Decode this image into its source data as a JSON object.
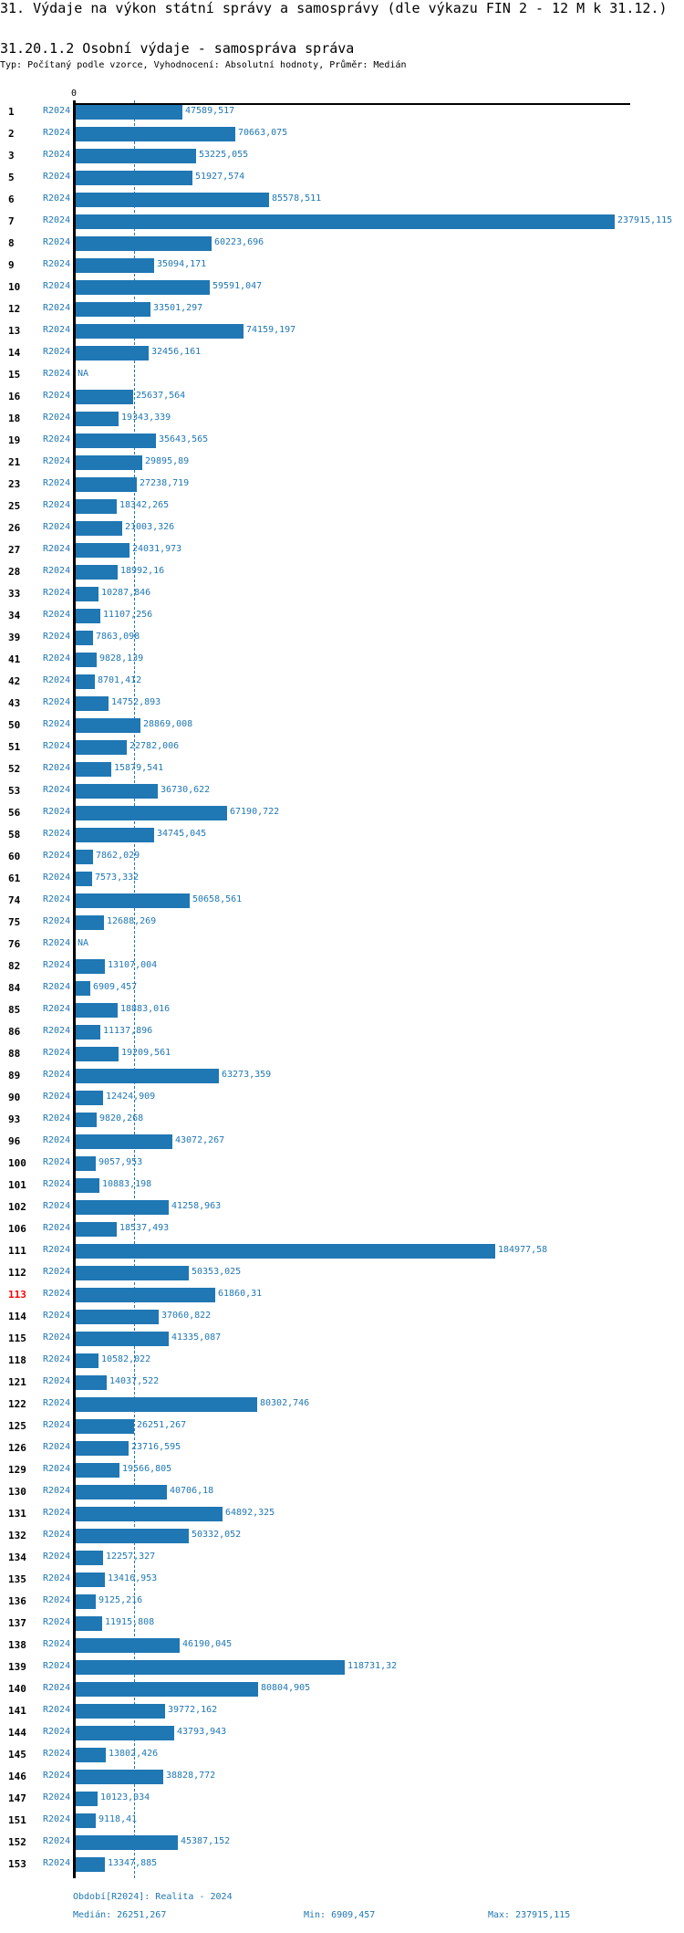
{
  "header": {
    "title": "31. Výdaje na výkon státní správy a samosprávy (dle výkazu FIN 2 - 12 M k 31.12.)",
    "subtitle": "31.20.1.2 Osobní výdaje - samospráva správa",
    "typ": "Typ: Počítaný podle vzorce, Vyhodnocení: Absolutní hodnoty, Průměr: Medián"
  },
  "colors": {
    "bar": "#1f77b4",
    "highlight": "#ff0000"
  },
  "chart_data": {
    "type": "bar",
    "orientation": "horizontal",
    "x_tick_zero": "0",
    "series_name": "R2024",
    "highlight_category": "113",
    "median_line": 26251.267,
    "rows": [
      {
        "id": "1",
        "period": "R2024",
        "value": 47589.517,
        "label": "47589,517"
      },
      {
        "id": "2",
        "period": "R2024",
        "value": 70663.075,
        "label": "70663,075"
      },
      {
        "id": "3",
        "period": "R2024",
        "value": 53225.055,
        "label": "53225,055"
      },
      {
        "id": "5",
        "period": "R2024",
        "value": 51927.574,
        "label": "51927,574"
      },
      {
        "id": "6",
        "period": "R2024",
        "value": 85578.511,
        "label": "85578,511"
      },
      {
        "id": "7",
        "period": "R2024",
        "value": 237915.115,
        "label": "237915,115"
      },
      {
        "id": "8",
        "period": "R2024",
        "value": 60223.696,
        "label": "60223,696"
      },
      {
        "id": "9",
        "period": "R2024",
        "value": 35094.171,
        "label": "35094,171"
      },
      {
        "id": "10",
        "period": "R2024",
        "value": 59591.047,
        "label": "59591,047"
      },
      {
        "id": "12",
        "period": "R2024",
        "value": 33501.297,
        "label": "33501,297"
      },
      {
        "id": "13",
        "period": "R2024",
        "value": 74159.197,
        "label": "74159,197"
      },
      {
        "id": "14",
        "period": "R2024",
        "value": 32456.161,
        "label": "32456,161"
      },
      {
        "id": "15",
        "period": "R2024",
        "value": null,
        "label": "NA"
      },
      {
        "id": "16",
        "period": "R2024",
        "value": 25637.564,
        "label": "25637,564"
      },
      {
        "id": "18",
        "period": "R2024",
        "value": 19343.339,
        "label": "19343,339"
      },
      {
        "id": "19",
        "period": "R2024",
        "value": 35643.565,
        "label": "35643,565"
      },
      {
        "id": "21",
        "period": "R2024",
        "value": 29895.89,
        "label": "29895,89"
      },
      {
        "id": "23",
        "period": "R2024",
        "value": 27238.719,
        "label": "27238,719"
      },
      {
        "id": "25",
        "period": "R2024",
        "value": 18342.265,
        "label": "18342,265"
      },
      {
        "id": "26",
        "period": "R2024",
        "value": 21003.326,
        "label": "21003,326"
      },
      {
        "id": "27",
        "period": "R2024",
        "value": 24031.973,
        "label": "24031,973"
      },
      {
        "id": "28",
        "period": "R2024",
        "value": 18992.16,
        "label": "18992,16"
      },
      {
        "id": "33",
        "period": "R2024",
        "value": 10287.846,
        "label": "10287,846"
      },
      {
        "id": "34",
        "period": "R2024",
        "value": 11107.256,
        "label": "11107,256"
      },
      {
        "id": "39",
        "period": "R2024",
        "value": 7863.098,
        "label": "7863,098"
      },
      {
        "id": "41",
        "period": "R2024",
        "value": 9828.139,
        "label": "9828,139"
      },
      {
        "id": "42",
        "period": "R2024",
        "value": 8701.412,
        "label": "8701,412"
      },
      {
        "id": "43",
        "period": "R2024",
        "value": 14752.893,
        "label": "14752,893"
      },
      {
        "id": "50",
        "period": "R2024",
        "value": 28869.008,
        "label": "28869,008"
      },
      {
        "id": "51",
        "period": "R2024",
        "value": 22782.006,
        "label": "22782,006"
      },
      {
        "id": "52",
        "period": "R2024",
        "value": 15879.541,
        "label": "15879,541"
      },
      {
        "id": "53",
        "period": "R2024",
        "value": 36730.622,
        "label": "36730,622"
      },
      {
        "id": "56",
        "period": "R2024",
        "value": 67190.722,
        "label": "67190,722"
      },
      {
        "id": "58",
        "period": "R2024",
        "value": 34745.045,
        "label": "34745,045"
      },
      {
        "id": "60",
        "period": "R2024",
        "value": 7862.029,
        "label": "7862,029"
      },
      {
        "id": "61",
        "period": "R2024",
        "value": 7573.332,
        "label": "7573,332"
      },
      {
        "id": "74",
        "period": "R2024",
        "value": 50658.561,
        "label": "50658,561"
      },
      {
        "id": "75",
        "period": "R2024",
        "value": 12688.269,
        "label": "12688,269"
      },
      {
        "id": "76",
        "period": "R2024",
        "value": null,
        "label": "NA"
      },
      {
        "id": "82",
        "period": "R2024",
        "value": 13107.004,
        "label": "13107,004"
      },
      {
        "id": "84",
        "period": "R2024",
        "value": 6909.457,
        "label": "6909,457"
      },
      {
        "id": "85",
        "period": "R2024",
        "value": 18883.016,
        "label": "18883,016"
      },
      {
        "id": "86",
        "period": "R2024",
        "value": 11137.896,
        "label": "11137,896"
      },
      {
        "id": "88",
        "period": "R2024",
        "value": 19209.561,
        "label": "19209,561"
      },
      {
        "id": "89",
        "period": "R2024",
        "value": 63273.359,
        "label": "63273,359"
      },
      {
        "id": "90",
        "period": "R2024",
        "value": 12424.909,
        "label": "12424,909"
      },
      {
        "id": "93",
        "period": "R2024",
        "value": 9820.268,
        "label": "9820,268"
      },
      {
        "id": "96",
        "period": "R2024",
        "value": 43072.267,
        "label": "43072,267"
      },
      {
        "id": "100",
        "period": "R2024",
        "value": 9057.953,
        "label": "9057,953"
      },
      {
        "id": "101",
        "period": "R2024",
        "value": 10883.198,
        "label": "10883,198"
      },
      {
        "id": "102",
        "period": "R2024",
        "value": 41258.963,
        "label": "41258,963"
      },
      {
        "id": "106",
        "period": "R2024",
        "value": 18537.493,
        "label": "18537,493"
      },
      {
        "id": "111",
        "period": "R2024",
        "value": 184977.58,
        "label": "184977,58"
      },
      {
        "id": "112",
        "period": "R2024",
        "value": 50353.025,
        "label": "50353,025"
      },
      {
        "id": "113",
        "period": "R2024",
        "value": 61860.31,
        "label": "61860,31"
      },
      {
        "id": "114",
        "period": "R2024",
        "value": 37060.822,
        "label": "37060,822"
      },
      {
        "id": "115",
        "period": "R2024",
        "value": 41335.087,
        "label": "41335,087"
      },
      {
        "id": "118",
        "period": "R2024",
        "value": 10582.022,
        "label": "10582,022"
      },
      {
        "id": "121",
        "period": "R2024",
        "value": 14037.522,
        "label": "14037,522"
      },
      {
        "id": "122",
        "period": "R2024",
        "value": 80302.746,
        "label": "80302,746"
      },
      {
        "id": "125",
        "period": "R2024",
        "value": 26251.267,
        "label": "26251,267"
      },
      {
        "id": "126",
        "period": "R2024",
        "value": 23716.595,
        "label": "23716,595"
      },
      {
        "id": "129",
        "period": "R2024",
        "value": 19566.805,
        "label": "19566,805"
      },
      {
        "id": "130",
        "period": "R2024",
        "value": 40706.18,
        "label": "40706,18"
      },
      {
        "id": "131",
        "period": "R2024",
        "value": 64892.325,
        "label": "64892,325"
      },
      {
        "id": "132",
        "period": "R2024",
        "value": 50332.052,
        "label": "50332,052"
      },
      {
        "id": "134",
        "period": "R2024",
        "value": 12257.327,
        "label": "12257,327"
      },
      {
        "id": "135",
        "period": "R2024",
        "value": 13416.953,
        "label": "13416,953"
      },
      {
        "id": "136",
        "period": "R2024",
        "value": 9125.216,
        "label": "9125,216"
      },
      {
        "id": "137",
        "period": "R2024",
        "value": 11915.808,
        "label": "11915,808"
      },
      {
        "id": "138",
        "period": "R2024",
        "value": 46190.045,
        "label": "46190,045"
      },
      {
        "id": "139",
        "period": "R2024",
        "value": 118731.32,
        "label": "118731,32"
      },
      {
        "id": "140",
        "period": "R2024",
        "value": 80804.905,
        "label": "80804,905"
      },
      {
        "id": "141",
        "period": "R2024",
        "value": 39772.162,
        "label": "39772,162"
      },
      {
        "id": "144",
        "period": "R2024",
        "value": 43793.943,
        "label": "43793,943"
      },
      {
        "id": "145",
        "period": "R2024",
        "value": 13802.426,
        "label": "13802,426"
      },
      {
        "id": "146",
        "period": "R2024",
        "value": 38828.772,
        "label": "38828,772"
      },
      {
        "id": "147",
        "period": "R2024",
        "value": 10123.034,
        "label": "10123,034"
      },
      {
        "id": "151",
        "period": "R2024",
        "value": 9118.41,
        "label": "9118,41"
      },
      {
        "id": "152",
        "period": "R2024",
        "value": 45387.152,
        "label": "45387,152"
      },
      {
        "id": "153",
        "period": "R2024",
        "value": 13347.885,
        "label": "13347,885"
      }
    ]
  },
  "footer": {
    "period": "Období[R2024]: Realita - 2024",
    "median": "Medián: 26251,267",
    "min": "Min: 6909,457",
    "max": "Max: 237915,115"
  }
}
